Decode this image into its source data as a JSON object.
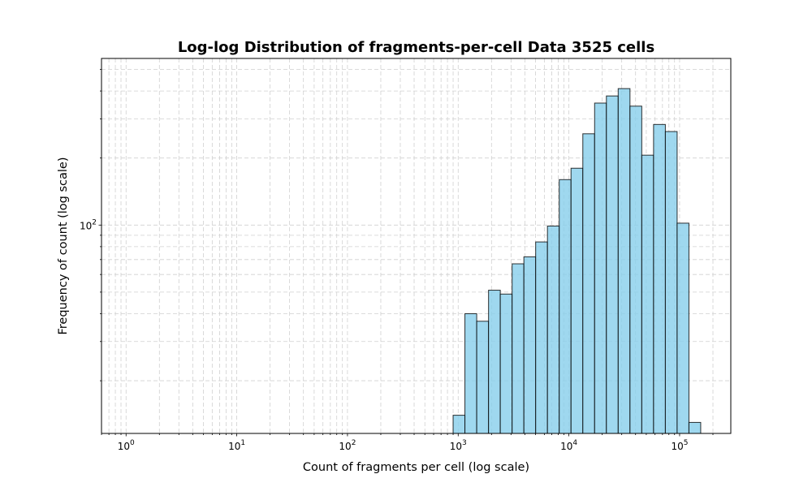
{
  "chart_data": {
    "type": "bar",
    "title": "Log-log Distribution of fragments-per-cell Data 3525 cells",
    "xlabel": "Count of fragments per cell (log scale)",
    "ylabel": "Frequency of count (log scale)",
    "xscale": "log",
    "yscale": "log",
    "xlim": [
      0.6,
      290000
    ],
    "ylim": [
      11.6,
      560
    ],
    "grid": true,
    "bar_color": "#87ceeb",
    "edge_color": "#000000",
    "x_ticks": [
      {
        "value": 1,
        "label": "10^0"
      },
      {
        "value": 10,
        "label": "10^1"
      },
      {
        "value": 100,
        "label": "10^2"
      },
      {
        "value": 1000,
        "label": "10^3"
      },
      {
        "value": 10000,
        "label": "10^4"
      },
      {
        "value": 100000,
        "label": "10^5"
      }
    ],
    "y_ticks": [
      {
        "value": 100,
        "label": "10^2"
      }
    ],
    "bin_edges": [
      900,
      1150,
      1470,
      1880,
      2400,
      3070,
      3920,
      5010,
      6400,
      8180,
      10450,
      13360,
      17070,
      21810,
      27870,
      35620,
      45520,
      58170,
      74340,
      95000,
      121400,
      155100
    ],
    "values": [
      14,
      40,
      37,
      51,
      49,
      67,
      72,
      84,
      99,
      160,
      180,
      257,
      353,
      380,
      410,
      342,
      206,
      283,
      263,
      102,
      13
    ]
  }
}
